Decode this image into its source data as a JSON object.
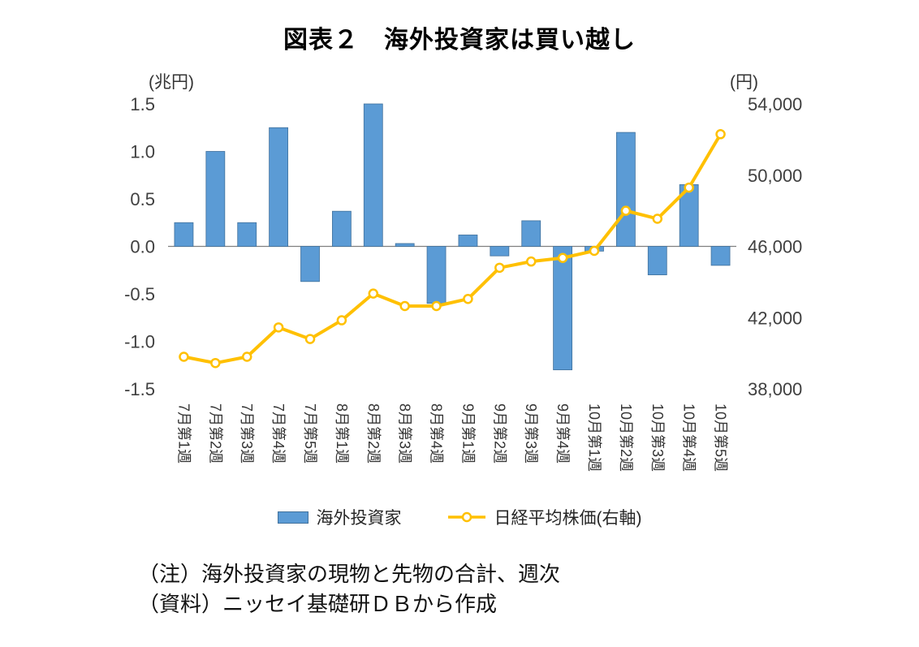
{
  "title": "図表２　海外投資家は買い越し",
  "notes": {
    "line1": "（注）海外投資家の現物と先物の合計、週次",
    "line2": "（資料）ニッセイ基礎研ＤＢから作成"
  },
  "chart_data": {
    "type": "bar+line",
    "categories": [
      "7月第1週",
      "7月第2週",
      "7月第3週",
      "7月第4週",
      "7月第5週",
      "8月第1週",
      "8月第2週",
      "8月第3週",
      "8月第4週",
      "9月第1週",
      "9月第2週",
      "9月第3週",
      "9月第4週",
      "10月第1週",
      "10月第2週",
      "10月第3週",
      "10月第4週",
      "10月第5週"
    ],
    "series": [
      {
        "name": "海外投資家",
        "type": "bar",
        "axis": "left",
        "color": "#5B9BD5",
        "border": "#41719C",
        "values": [
          0.25,
          1.0,
          0.25,
          1.25,
          -0.37,
          0.37,
          1.5,
          0.03,
          -0.6,
          0.12,
          -0.1,
          0.27,
          -1.3,
          -0.05,
          1.2,
          -0.3,
          0.65,
          -0.2
        ]
      },
      {
        "name": "日経平均株価(右軸)",
        "type": "line",
        "axis": "right",
        "color": "#FFC000",
        "marker_fill": "#FFFFFF",
        "values": [
          39800,
          39450,
          39800,
          41450,
          40800,
          41850,
          43350,
          42650,
          42650,
          43050,
          44800,
          45150,
          45350,
          45750,
          48000,
          47550,
          49300,
          52300
        ]
      }
    ],
    "left_axis": {
      "label": "(兆円)",
      "min": -1.5,
      "max": 1.5,
      "tick_labels": [
        "1.5",
        "1.0",
        "0.5",
        "0.0",
        "-0.5",
        "-1.0",
        "-1.5"
      ]
    },
    "right_axis": {
      "label": "(円)",
      "min": 38000,
      "max": 54000,
      "tick_labels": [
        "54,000",
        "50,000",
        "46,000",
        "42,000",
        "38,000"
      ]
    },
    "grid": false,
    "legend_position": "bottom",
    "zero_line_color": "#808080"
  }
}
